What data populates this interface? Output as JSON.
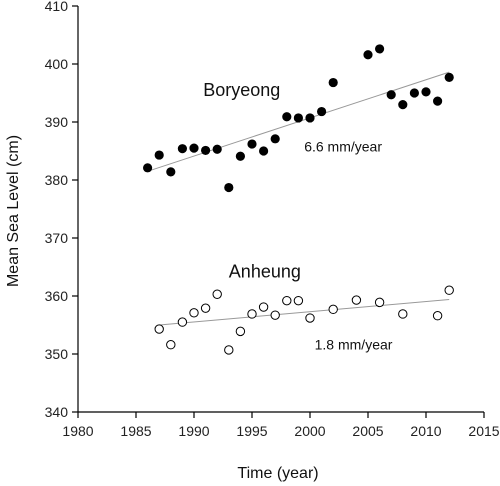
{
  "chart_data": {
    "type": "scatter",
    "title": "",
    "xlabel": "Time (year)",
    "ylabel": "Mean Sea Level (cm)",
    "xlim": [
      1980,
      2015
    ],
    "ylim": [
      340,
      410
    ],
    "xticks": [
      1980,
      1985,
      1990,
      1995,
      2000,
      2005,
      2010,
      2015
    ],
    "yticks": [
      340,
      350,
      360,
      370,
      380,
      390,
      400,
      410
    ],
    "grid": false,
    "legend": "none",
    "series": [
      {
        "name": "Boryeong",
        "marker": "filled-circle",
        "color": "#000000",
        "x": [
          1986,
          1987,
          1988,
          1989,
          1990,
          1991,
          1992,
          1993,
          1994,
          1995,
          1996,
          1997,
          1998,
          1999,
          2000,
          2001,
          2002,
          2005,
          2006,
          2007,
          2008,
          2009,
          2010,
          2011,
          2012
        ],
        "y": [
          382.1,
          384.3,
          381.4,
          385.4,
          385.5,
          385.1,
          385.3,
          378.7,
          384.1,
          386.2,
          385.0,
          387.1,
          390.9,
          390.7,
          390.7,
          391.8,
          396.8,
          401.6,
          402.6,
          394.7,
          393.0,
          395.0,
          395.2,
          393.6,
          397.7
        ],
        "trend": {
          "x": [
            1986,
            2012
          ],
          "y": [
            381.5,
            398.6
          ],
          "rate_label": "6.6 mm/year"
        }
      },
      {
        "name": "Anheung",
        "marker": "open-circle",
        "color": "#000000",
        "x": [
          1987,
          1988,
          1989,
          1990,
          1991,
          1992,
          1993,
          1994,
          1995,
          1996,
          1997,
          1998,
          1999,
          2000,
          2002,
          2004,
          2006,
          2008,
          2011,
          2012
        ],
        "y": [
          354.3,
          351.6,
          355.5,
          357.1,
          357.9,
          360.3,
          350.7,
          353.9,
          356.9,
          358.1,
          356.7,
          359.2,
          359.2,
          356.2,
          357.7,
          359.3,
          358.9,
          356.9,
          356.6,
          361.0
        ],
        "trend": {
          "x": [
            1987,
            2012
          ],
          "y": [
            355.0,
            359.4
          ],
          "rate_label": "1.8 mm/year"
        }
      }
    ],
    "annotations": [
      {
        "text": "Boryeong",
        "x": 1990.8,
        "y": 394.5,
        "size": "large"
      },
      {
        "text": "6.6 mm/year",
        "x": 1999.5,
        "y": 384.9,
        "size": "small"
      },
      {
        "text": "Anheung",
        "x": 1993.0,
        "y": 363.2,
        "size": "large"
      },
      {
        "text": "1.8 mm/year",
        "x": 2000.4,
        "y": 350.8,
        "size": "small"
      }
    ],
    "colors": {
      "axis": "#000000",
      "trend": "#999999",
      "marker": "#000000",
      "open_fill": "#ffffff"
    }
  }
}
